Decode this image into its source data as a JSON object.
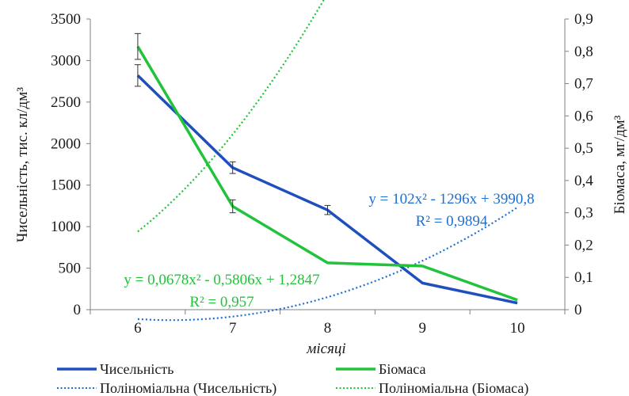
{
  "chart_data": {
    "type": "line",
    "xlabel": "місяці",
    "ylabel_left": "Чисельність,  тис. кл/дм³",
    "ylabel_right": "Біомаса, мг/дм³",
    "x": [
      6,
      7,
      8,
      9,
      10
    ],
    "x_ticks": [
      "6",
      "7",
      "8",
      "9",
      "10"
    ],
    "y_left_lim": [
      0,
      3500
    ],
    "y_left_ticks": [
      "0",
      "500",
      "1000",
      "1500",
      "2000",
      "2500",
      "3000",
      "3500"
    ],
    "y_right_lim": [
      0,
      0.9
    ],
    "y_right_ticks": [
      "0",
      "0,1",
      "0,2",
      "0,3",
      "0,4",
      "0,5",
      "0,6",
      "0,7",
      "0,8",
      "0,9"
    ],
    "grid": false,
    "legend_position": "bottom",
    "series": [
      {
        "name": "Чисельність",
        "axis": "left",
        "color": "#1f4fbf",
        "values": [
          2820,
          1710,
          1200,
          320,
          80
        ],
        "error": [
          130,
          70,
          55,
          0,
          0
        ]
      },
      {
        "name": "Біомаса",
        "axis": "right",
        "color": "#22c33a",
        "values": [
          0.815,
          0.32,
          0.145,
          0.135,
          0.03
        ],
        "error": [
          0.04,
          0.02,
          0.0,
          0.0,
          0.0
        ]
      }
    ],
    "trendlines": [
      {
        "name": "Поліноміальна (Чисельність)",
        "axis": "left",
        "color": "#1f6fd1",
        "coefficients": [
          102,
          -1296,
          3990.8
        ],
        "equation": "y = 102x² - 1296x + 3990,8",
        "r2": "R² = 0,9894"
      },
      {
        "name": "Поліноміальна (Біомаса)",
        "axis": "right",
        "color": "#22c33a",
        "coefficients": [
          0.0678,
          -0.5806,
          1.2847
        ],
        "equation": "y = 0,0678x² - 0,5806x + 1,2847",
        "r2": "R² = 0,957"
      }
    ]
  }
}
